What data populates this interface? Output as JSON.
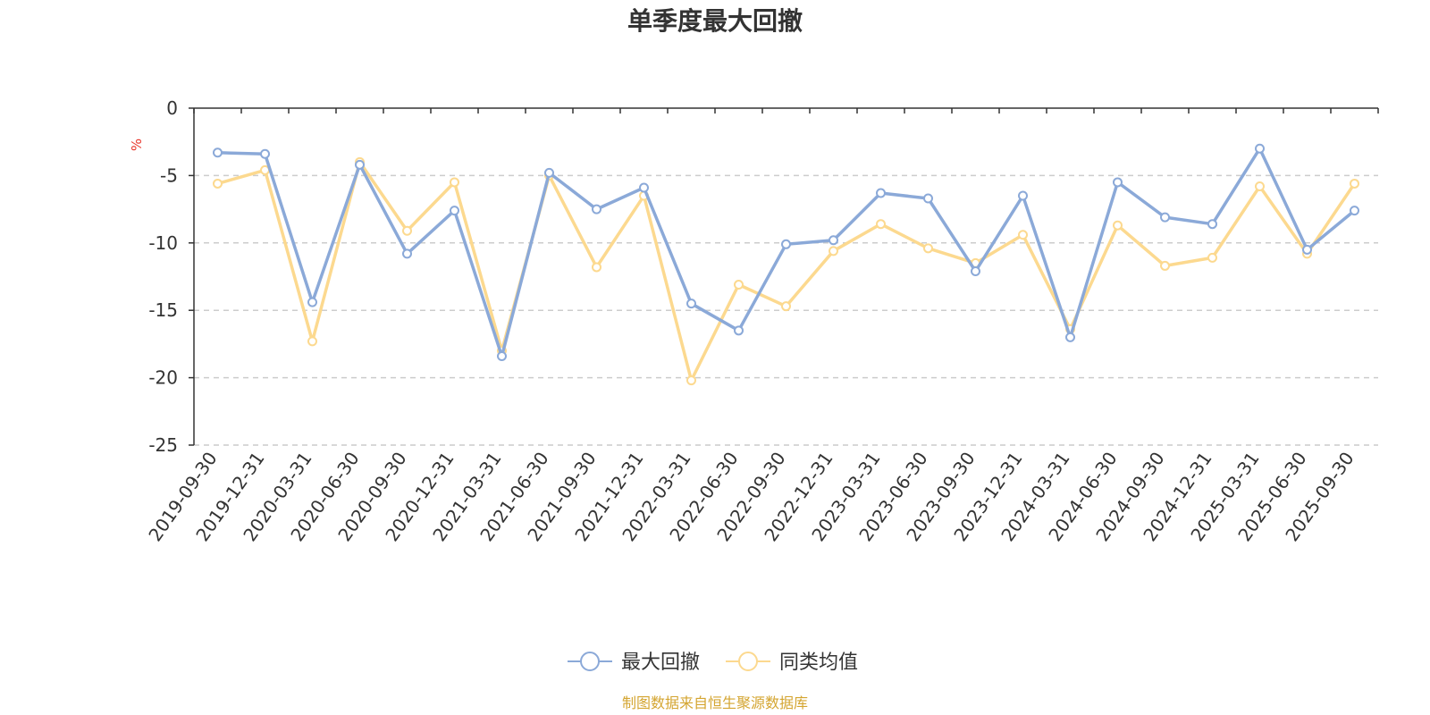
{
  "chart_data": {
    "type": "line",
    "title": "单季度最大回撤",
    "ylabel": "%",
    "ylim": [
      -25,
      0
    ],
    "yticks": [
      0,
      -5,
      -10,
      -15,
      -20,
      -25
    ],
    "ytick_labels": [
      "0",
      "-5",
      "-10",
      "-15",
      "-20",
      "-25"
    ],
    "grid": true,
    "legend_position": "bottom-center",
    "categories": [
      "2019-09-30",
      "2019-12-31",
      "2020-03-31",
      "2020-06-30",
      "2020-09-30",
      "2020-12-31",
      "2021-03-31",
      "2021-06-30",
      "2021-09-30",
      "2021-12-31",
      "2022-03-31",
      "2022-06-30",
      "2022-09-30",
      "2022-12-31",
      "2023-03-31",
      "2023-06-30",
      "2023-09-30",
      "2023-12-31",
      "2024-03-31",
      "2024-06-30",
      "2024-09-30",
      "2024-12-31",
      "2025-03-31",
      "2025-06-30",
      "2025-09-30"
    ],
    "series": [
      {
        "name": "最大回撤",
        "color": "#8ba9d8",
        "values": [
          -3.3,
          -3.4,
          -14.4,
          -4.2,
          -10.8,
          -7.6,
          -18.4,
          -4.8,
          -7.5,
          -5.9,
          -14.5,
          -16.5,
          -10.1,
          -9.8,
          -6.3,
          -6.7,
          -12.1,
          -6.5,
          -17.0,
          -5.5,
          -8.1,
          -8.6,
          -3.0,
          -10.5,
          -7.6
        ]
      },
      {
        "name": "同类均值",
        "color": "#fcd98f",
        "values": [
          -5.6,
          -4.6,
          -17.3,
          -4.0,
          -9.1,
          -5.5,
          -18.0,
          -5.0,
          -11.8,
          -6.5,
          -20.2,
          -13.1,
          -14.7,
          -10.6,
          -8.6,
          -10.4,
          -11.5,
          -9.4,
          -16.4,
          -8.7,
          -11.7,
          -11.1,
          -5.8,
          -10.8,
          -5.6
        ]
      }
    ],
    "source_note": "制图数据来自恒生聚源数据库",
    "colors": {
      "axis": "#333333",
      "grid": "#cccccc",
      "unit": "#e8372c",
      "source": "#d4a531"
    }
  }
}
